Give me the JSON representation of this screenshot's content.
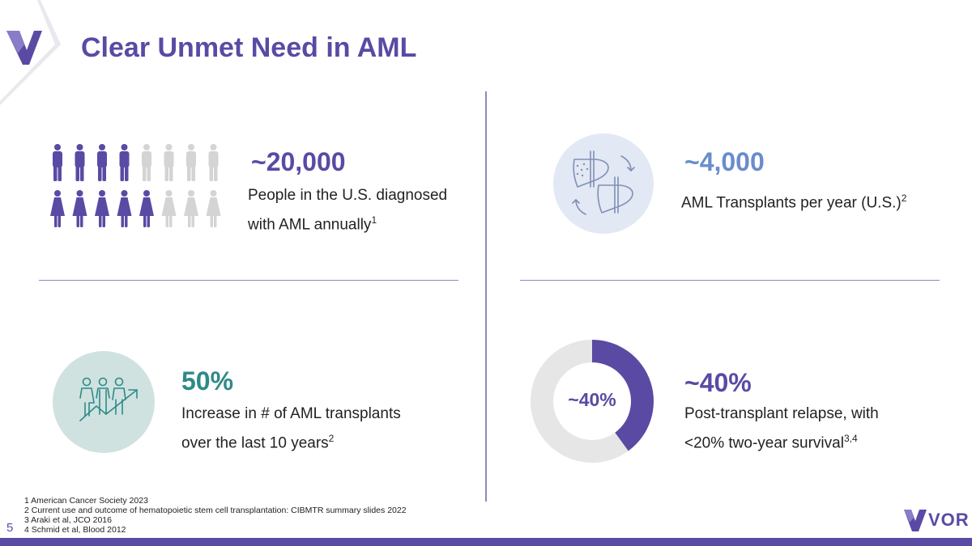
{
  "header": {
    "title": "Clear Unmet Need in AML"
  },
  "quadrant_1": {
    "stat": "~20,000",
    "desc_line1": "People in the U.S. diagnosed",
    "desc_line2": "with AML annually",
    "desc_ref": "1",
    "figures": {
      "men_total": 8,
      "men_highlighted": 4,
      "women_total": 8,
      "women_highlighted": 5
    },
    "colors": {
      "highlight": "#5a4aa4",
      "muted": "#d4d4d4"
    }
  },
  "quadrant_2": {
    "stat": "~4,000",
    "desc": "AML Transplants per year (U.S.)",
    "desc_ref": "2",
    "icon": "liver-transplant-icon",
    "colors": {
      "stat": "#6a8ccd",
      "icon_bg": "#e2e8f4"
    }
  },
  "quadrant_3": {
    "stat": "50%",
    "desc_line1": "Increase in # of AML transplants",
    "desc_line2": "over the last 10 years",
    "desc_ref": "2",
    "icon": "people-growth-icon",
    "colors": {
      "stat": "#2e8a87",
      "icon_bg": "#cfe2e0"
    }
  },
  "quadrant_4": {
    "stat": "~40%",
    "desc_line1": "Post-transplant relapse, with",
    "desc_line2": "<20% two-year survival",
    "desc_ref": "3,4",
    "colors": {
      "stat": "#5a4aa4"
    }
  },
  "chart_data": {
    "type": "pie",
    "center_label": "~40%",
    "values": [
      40,
      60
    ],
    "colors": [
      "#5a4aa4",
      "#e6e6e6"
    ]
  },
  "footnotes": [
    "1 American Cancer Society 2023",
    "2 Current use and outcome of hematopoietic stem cell transplantation: CIBMTR summary slides 2022",
    "3 Araki et al, JCO 2016",
    "4 Schmid et al, Blood 2012"
  ],
  "footer": {
    "page_number": "5",
    "brand": "VOR"
  },
  "colors": {
    "brand": "#5a4aa4",
    "divider": "#8b8bbb"
  }
}
